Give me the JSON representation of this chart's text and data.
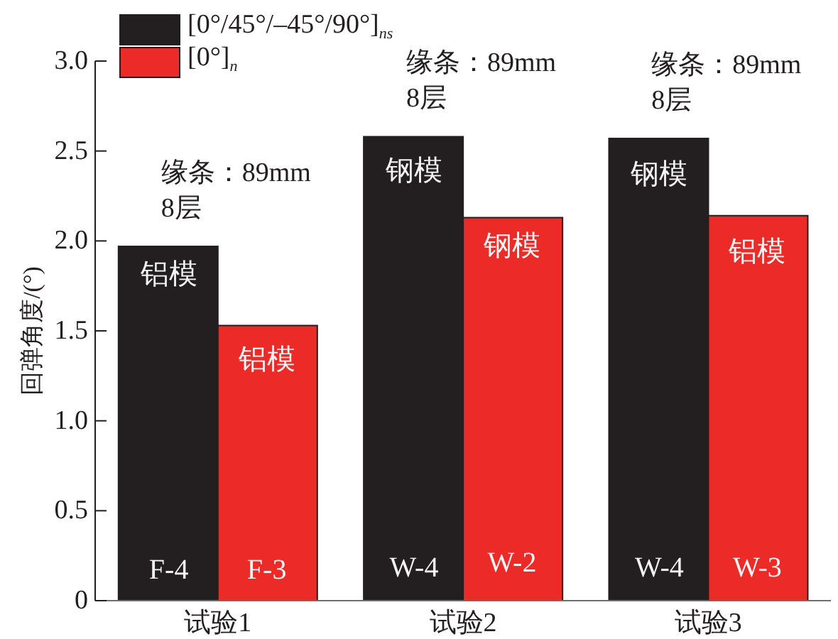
{
  "chart_data": {
    "type": "bar",
    "categories": [
      "试验1",
      "试验2",
      "试验3"
    ],
    "series": [
      {
        "name": "[0°/45°/–45°/90°]$_{ns}$",
        "color": "#231f20",
        "values": [
          1.97,
          2.58,
          2.57
        ]
      },
      {
        "name": "[0°]$_{n}$",
        "color": "#ec2a28",
        "values": [
          1.53,
          2.13,
          2.14
        ]
      }
    ],
    "ylabel": "回弹角度/(°)",
    "ylim": [
      0,
      3
    ],
    "yticks": [
      0,
      0.5,
      {
        "value": 1,
        "label": "1.0"
      },
      1.5,
      {
        "value": 2,
        "label": "2.0"
      },
      2.5,
      {
        "value": 3,
        "label": "3.0"
      }
    ],
    "legend": "top left",
    "annotations": [
      "缘条：89mm\n8层",
      {
        "text": "铝模",
        "x": "试验1",
        "y": 1.81
      },
      {
        "text": "铝模",
        "x": "试验1",
        "y": 1.34
      },
      {
        "text": "F-4",
        "x": "试验1",
        "y": 0.17
      },
      {
        "text": "F-3",
        "x": "试验1",
        "y": 0.17
      },
      "缘条：89mm\n8层",
      {
        "text": "钢模",
        "x": "试验2",
        "y": 2.39
      },
      {
        "text": "钢模",
        "x": "试验2",
        "y": 1.97
      },
      {
        "text": "W-4",
        "x": "试验2",
        "y": 0.18
      },
      {
        "text": "W-2",
        "x": "试验2",
        "y": 0.21
      },
      "缘条：89mm\n8层",
      {
        "text": "钢模",
        "x": "试验3",
        "y": 2.37
      },
      {
        "text": "铝模",
        "x": "试验3",
        "y": 1.94
      },
      {
        "text": "W-4",
        "x": "试验3",
        "y": 0.18
      },
      {
        "text": "W-3",
        "x": "试验3",
        "y": 0.18
      }
    ]
  }
}
